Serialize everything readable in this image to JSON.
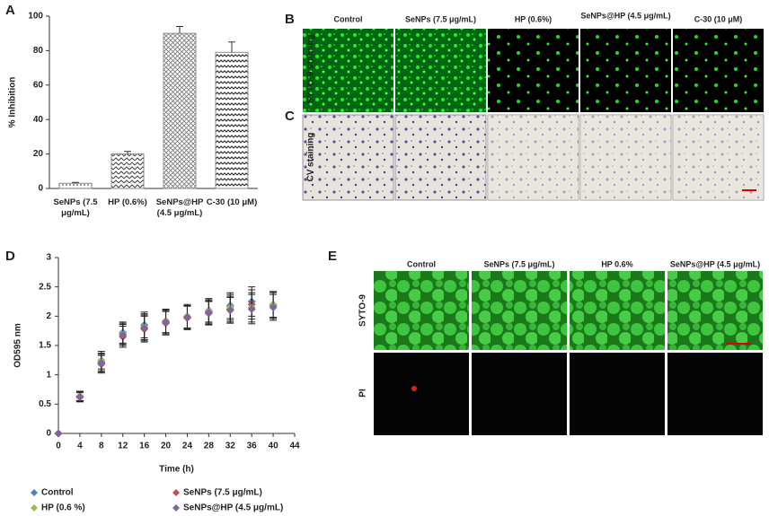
{
  "chart_data": [
    {
      "type": "bar",
      "panel": "A",
      "ylabel": "% Inhibition",
      "categories": [
        "SeNPs (7.5 μg/mL)",
        "HP (0.6%)",
        "SeNPs@HP (4.5 μg/mL)",
        "C-30 (10 μM)"
      ],
      "values": [
        3,
        20,
        90,
        79
      ],
      "errors": [
        0.5,
        1.5,
        4,
        6
      ],
      "ylim": [
        0,
        100
      ],
      "yticks": [
        0,
        20,
        40,
        60,
        80,
        100
      ],
      "color": "#888888"
    },
    {
      "type": "scatter",
      "panel": "D",
      "xlabel": "Time (h)",
      "ylabel": "OD595 nm",
      "x": [
        0,
        4,
        8,
        12,
        16,
        20,
        24,
        28,
        32,
        36,
        40
      ],
      "xlim": [
        0,
        44
      ],
      "xticks": [
        0,
        4,
        8,
        12,
        16,
        20,
        24,
        28,
        32,
        36,
        40,
        44
      ],
      "ylim": [
        0,
        3
      ],
      "yticks": [
        0,
        0.5,
        1,
        1.5,
        2,
        2.5,
        3
      ],
      "series": [
        {
          "name": "Control",
          "color": "#4f81bd",
          "values": [
            0,
            0.63,
            1.22,
            1.72,
            1.85,
            1.9,
            1.98,
            2.08,
            2.18,
            2.25,
            2.2
          ],
          "errors": [
            0,
            0.08,
            0.15,
            0.18,
            0.22,
            0.2,
            0.2,
            0.2,
            0.22,
            0.25,
            0.22
          ]
        },
        {
          "name": "SeNPs (7.5 μg/mL)",
          "color": "#c0504d",
          "values": [
            0,
            0.62,
            1.18,
            1.65,
            1.78,
            1.88,
            1.97,
            2.05,
            2.12,
            2.2,
            2.18
          ],
          "errors": [
            0,
            0.08,
            0.15,
            0.18,
            0.22,
            0.2,
            0.2,
            0.2,
            0.22,
            0.25,
            0.22
          ]
        },
        {
          "name": "HP (0.6 %)",
          "color": "#9bbb59",
          "values": [
            0,
            0.64,
            1.25,
            1.7,
            1.82,
            1.92,
            2.0,
            2.1,
            2.15,
            2.15,
            2.2
          ],
          "errors": [
            0,
            0.08,
            0.15,
            0.18,
            0.22,
            0.2,
            0.2,
            0.2,
            0.22,
            0.25,
            0.22
          ]
        },
        {
          "name": "SeNPs@HP (4.5 μg/mL)",
          "color": "#8064a2",
          "values": [
            0,
            0.62,
            1.2,
            1.68,
            1.8,
            1.9,
            1.98,
            2.06,
            2.1,
            2.12,
            2.15
          ],
          "errors": [
            0,
            0.08,
            0.15,
            0.18,
            0.22,
            0.2,
            0.2,
            0.2,
            0.22,
            0.25,
            0.22
          ]
        }
      ]
    }
  ],
  "images": {
    "B": {
      "panel": "B",
      "row_label": "SYTO-9 staining",
      "columns": [
        "Control",
        "SeNPs (7.5 μg/mL)",
        "HP (0.6%)",
        "SeNPs@HP (4.5 μg/mL)",
        "C-30 (10 μM)"
      ]
    },
    "C": {
      "panel": "C",
      "row_label": "CV staining"
    },
    "E": {
      "panel": "E",
      "columns": [
        "Control",
        "SeNPs (7.5 μg/mL)",
        "HP 0.6%",
        "SeNPs@HP (4.5 μg/mL)"
      ],
      "rows": [
        "SYTO-9",
        "PI"
      ]
    }
  }
}
